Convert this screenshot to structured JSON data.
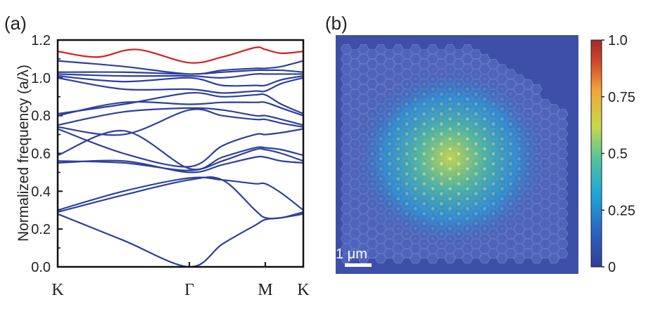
{
  "panel_a": {
    "tag": "(a)",
    "chart_data": {
      "type": "line",
      "title": "",
      "xlabel": "",
      "ylabel": "Normalized frequency (a/λ)",
      "ylim": [
        0.0,
        1.2
      ],
      "yticks": [
        "0.0",
        "0.2",
        "0.4",
        "0.6",
        "0.8",
        "1.0",
        "1.2"
      ],
      "xticks": [
        "K",
        "Γ",
        "M",
        "K"
      ],
      "x_positions": [
        0,
        1,
        1.5774,
        1.866
      ],
      "grid": false,
      "legend": "none",
      "colors": {
        "bands": "#2e3f9e",
        "highlight": "#d42121"
      },
      "series": [
        {
          "color_key": "bands",
          "points": [
            [
              0,
              0.28
            ],
            [
              0.5,
              0.14
            ],
            [
              1,
              0.0
            ],
            [
              1.25,
              0.12
            ],
            [
              1.5,
              0.22
            ],
            [
              1.5774,
              0.25
            ],
            [
              1.7,
              0.26
            ],
            [
              1.866,
              0.28
            ]
          ]
        },
        {
          "color_key": "bands",
          "points": [
            [
              0,
              0.29
            ],
            [
              0.5,
              0.38
            ],
            [
              1,
              0.46
            ],
            [
              1.25,
              0.46
            ],
            [
              1.5,
              0.3
            ],
            [
              1.5774,
              0.26
            ],
            [
              1.7,
              0.26
            ],
            [
              1.866,
              0.29
            ]
          ]
        },
        {
          "color_key": "bands",
          "points": [
            [
              0,
              0.3
            ],
            [
              0.5,
              0.4
            ],
            [
              1,
              0.47
            ],
            [
              1.25,
              0.46
            ],
            [
              1.5,
              0.44
            ],
            [
              1.5774,
              0.44
            ],
            [
              1.7,
              0.39
            ],
            [
              1.866,
              0.3
            ]
          ]
        },
        {
          "color_key": "bands",
          "points": [
            [
              0,
              0.55
            ],
            [
              0.5,
              0.56
            ],
            [
              1,
              0.5
            ],
            [
              1.25,
              0.54
            ],
            [
              1.5,
              0.58
            ],
            [
              1.5774,
              0.58
            ],
            [
              1.7,
              0.56
            ],
            [
              1.866,
              0.55
            ]
          ]
        },
        {
          "color_key": "bands",
          "points": [
            [
              0,
              0.56
            ],
            [
              0.5,
              0.55
            ],
            [
              1,
              0.51
            ],
            [
              1.25,
              0.56
            ],
            [
              1.5,
              0.62
            ],
            [
              1.5774,
              0.62
            ],
            [
              1.7,
              0.6
            ],
            [
              1.866,
              0.56
            ]
          ]
        },
        {
          "color_key": "bands",
          "points": [
            [
              0,
              0.59
            ],
            [
              0.5,
              0.72
            ],
            [
              1,
              0.52
            ],
            [
              1.25,
              0.58
            ],
            [
              1.5,
              0.63
            ],
            [
              1.5774,
              0.63
            ],
            [
              1.7,
              0.62
            ],
            [
              1.866,
              0.59
            ]
          ]
        },
        {
          "color_key": "bands",
          "points": [
            [
              0,
              0.73
            ],
            [
              0.5,
              0.6
            ],
            [
              1,
              0.53
            ],
            [
              1.25,
              0.64
            ],
            [
              1.5,
              0.7
            ],
            [
              1.5774,
              0.7
            ],
            [
              1.7,
              0.71
            ],
            [
              1.866,
              0.73
            ]
          ]
        },
        {
          "color_key": "bands",
          "points": [
            [
              0,
              0.74
            ],
            [
              0.5,
              0.7
            ],
            [
              1,
              0.83
            ],
            [
              1.25,
              0.8
            ],
            [
              1.5,
              0.78
            ],
            [
              1.5774,
              0.78
            ],
            [
              1.7,
              0.76
            ],
            [
              1.866,
              0.74
            ]
          ]
        },
        {
          "color_key": "bands",
          "points": [
            [
              0,
              0.75
            ],
            [
              0.5,
              0.82
            ],
            [
              1,
              0.84
            ],
            [
              1.25,
              0.83
            ],
            [
              1.5,
              0.8
            ],
            [
              1.5774,
              0.8
            ],
            [
              1.7,
              0.78
            ],
            [
              1.866,
              0.75
            ]
          ]
        },
        {
          "color_key": "bands",
          "points": [
            [
              0,
              0.8
            ],
            [
              0.5,
              0.87
            ],
            [
              1,
              0.86
            ],
            [
              1.25,
              0.87
            ],
            [
              1.5,
              0.87
            ],
            [
              1.5774,
              0.87
            ],
            [
              1.7,
              0.84
            ],
            [
              1.866,
              0.8
            ]
          ]
        },
        {
          "color_key": "bands",
          "points": [
            [
              0,
              0.81
            ],
            [
              0.5,
              0.86
            ],
            [
              1,
              0.92
            ],
            [
              1.25,
              0.9
            ],
            [
              1.5,
              0.91
            ],
            [
              1.5774,
              0.91
            ],
            [
              1.7,
              0.86
            ],
            [
              1.866,
              0.81
            ]
          ]
        },
        {
          "color_key": "bands",
          "points": [
            [
              0,
              1.0
            ],
            [
              0.5,
              0.94
            ],
            [
              1,
              0.94
            ],
            [
              1.25,
              0.92
            ],
            [
              1.5,
              0.93
            ],
            [
              1.5774,
              0.93
            ],
            [
              1.7,
              0.97
            ],
            [
              1.866,
              1.0
            ]
          ]
        },
        {
          "color_key": "bands",
          "points": [
            [
              0,
              1.01
            ],
            [
              0.5,
              0.98
            ],
            [
              1,
              1.0
            ],
            [
              1.25,
              0.96
            ],
            [
              1.5,
              0.96
            ],
            [
              1.5774,
              0.96
            ],
            [
              1.7,
              0.99
            ],
            [
              1.866,
              1.01
            ]
          ]
        },
        {
          "color_key": "bands",
          "points": [
            [
              0,
              1.02
            ],
            [
              0.5,
              1.01
            ],
            [
              1,
              1.01
            ],
            [
              1.25,
              1.0
            ],
            [
              1.5,
              1.02
            ],
            [
              1.5774,
              1.02
            ],
            [
              1.7,
              1.02
            ],
            [
              1.866,
              1.02
            ]
          ]
        },
        {
          "color_key": "bands",
          "points": [
            [
              0,
              1.03
            ],
            [
              0.5,
              1.03
            ],
            [
              1,
              1.02
            ],
            [
              1.25,
              1.03
            ],
            [
              1.5,
              1.04
            ],
            [
              1.5774,
              1.04
            ],
            [
              1.7,
              1.04
            ],
            [
              1.866,
              1.03
            ]
          ]
        },
        {
          "color_key": "bands",
          "points": [
            [
              0,
              1.09
            ],
            [
              0.5,
              1.06
            ],
            [
              1,
              1.02
            ],
            [
              1.25,
              1.04
            ],
            [
              1.5,
              1.05
            ],
            [
              1.5774,
              1.05
            ],
            [
              1.7,
              1.06
            ],
            [
              1.866,
              1.09
            ]
          ]
        },
        {
          "color_key": "highlight",
          "points": [
            [
              0,
              1.14
            ],
            [
              0.3,
              1.11
            ],
            [
              0.6,
              1.15
            ],
            [
              1,
              1.08
            ],
            [
              1.25,
              1.11
            ],
            [
              1.5,
              1.16
            ],
            [
              1.5774,
              1.15
            ],
            [
              1.7,
              1.13
            ],
            [
              1.866,
              1.14
            ]
          ]
        }
      ]
    }
  },
  "panel_b": {
    "tag": "(b)",
    "chart_data": {
      "type": "heatmap",
      "colorbar": {
        "ticks": [
          "1.0",
          "0.75",
          "0.5",
          "0.25",
          "0"
        ],
        "range": [
          0,
          1.0
        ],
        "colormap": [
          "#323d96",
          "#2a63c4",
          "#1ea6dd",
          "#53c49b",
          "#c9d94a",
          "#f3a33a",
          "#d24a2b",
          "#a5282a"
        ]
      },
      "scalebar_label": "1 μm",
      "background_color": "#3d4fa6",
      "peak_intensity": 0.55
    }
  }
}
